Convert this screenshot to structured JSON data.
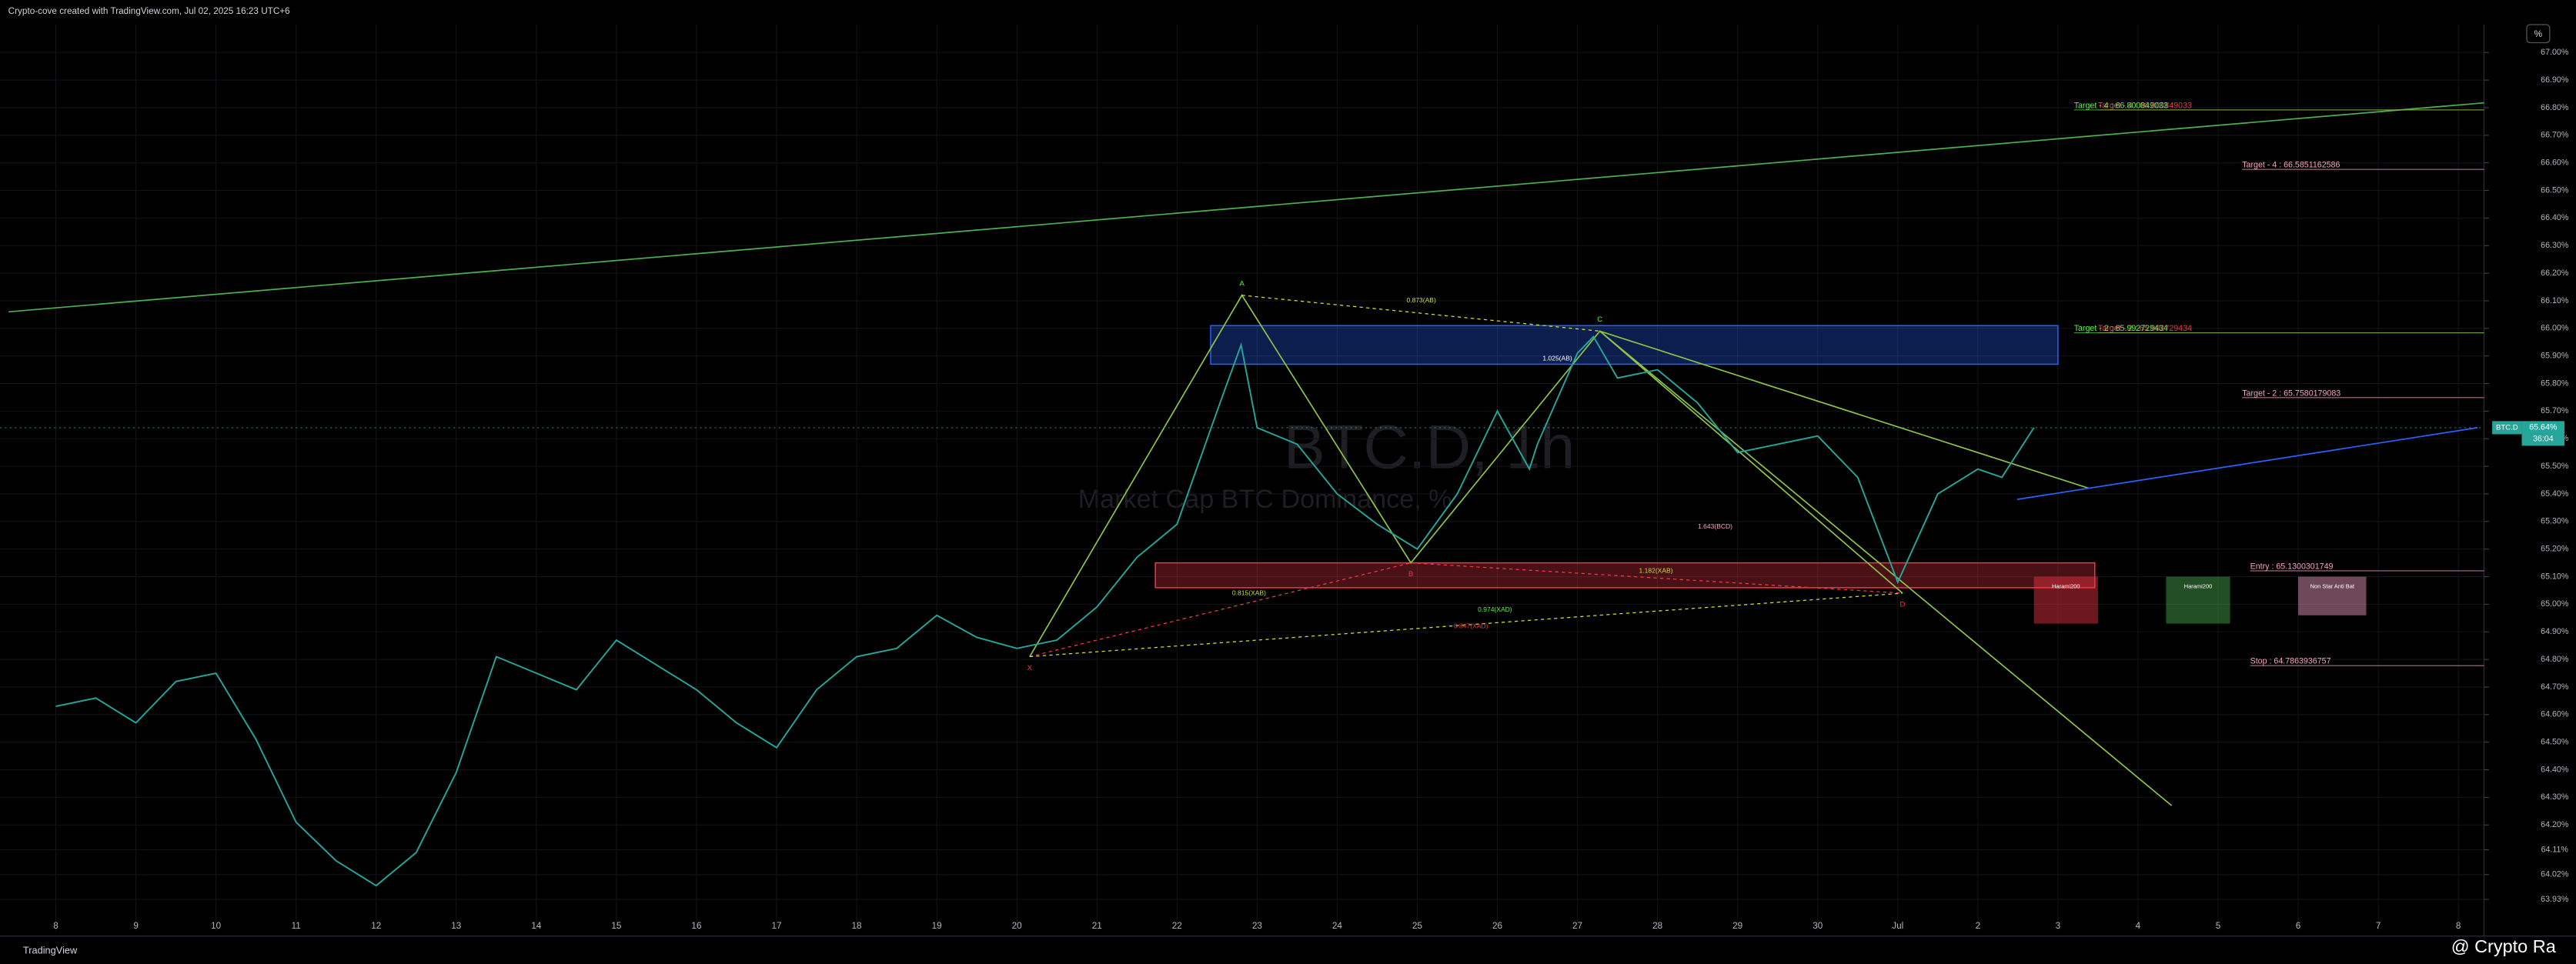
{
  "header": {
    "text": "Crypto-cove created with TradingView.com, Jul 02, 2025 16:23 UTC+6",
    "percent_button": "%"
  },
  "footer": {
    "logo": "TradingView",
    "watermark": "@ Crypto Ra"
  },
  "chart_data": {
    "type": "line",
    "symbol": "BTC.D, 1h",
    "subtitle": "Market Cap BTC Dominance, %",
    "x": [
      0,
      0.5,
      1,
      1.5,
      2,
      2.5,
      3,
      3.5,
      4,
      4.5,
      5,
      5.5,
      6,
      6.5,
      7,
      7.5,
      8,
      8.5,
      9,
      9.5,
      10,
      10.5,
      11,
      11.5,
      12,
      12.5,
      13,
      13.5,
      14,
      14.5,
      14.8,
      15,
      15.5,
      16,
      16.5,
      17,
      17.5,
      18,
      18.4,
      18.5,
      19,
      19.2,
      19.5,
      20,
      20.5,
      21,
      21.5,
      22,
      22.5,
      23,
      23.5,
      24,
      24.3,
      24.7
    ],
    "series": [
      {
        "name": "BTC.D",
        "color": "#26a69a",
        "values": [
          64.63,
          64.66,
          64.57,
          64.72,
          64.75,
          64.51,
          64.21,
          64.07,
          63.98,
          64.1,
          64.39,
          64.81,
          64.75,
          64.69,
          64.87,
          64.78,
          64.69,
          64.57,
          64.48,
          64.69,
          64.81,
          64.84,
          64.96,
          64.88,
          64.84,
          64.87,
          64.99,
          65.17,
          65.29,
          65.7,
          65.94,
          65.64,
          65.58,
          65.4,
          65.29,
          65.2,
          65.4,
          65.7,
          65.49,
          65.58,
          65.91,
          65.97,
          65.82,
          65.85,
          65.73,
          65.55,
          65.58,
          65.61,
          65.46,
          65.08,
          65.4,
          65.49,
          65.46,
          65.64
        ]
      }
    ],
    "current": {
      "symbol": "BTC.D",
      "value": 65.64,
      "label": "65.64%",
      "countdown": "36:04"
    },
    "xlim": [
      -0.697,
      30.32
    ],
    "ylim": [
      63.815,
      67.101
    ],
    "xticks": [
      {
        "value": 0,
        "label": "8"
      },
      {
        "value": 1,
        "label": "9"
      },
      {
        "value": 2,
        "label": "10"
      },
      {
        "value": 3,
        "label": "11"
      },
      {
        "value": 4,
        "label": "12"
      },
      {
        "value": 5,
        "label": "13"
      },
      {
        "value": 6,
        "label": "14"
      },
      {
        "value": 7,
        "label": "15"
      },
      {
        "value": 8,
        "label": "16"
      },
      {
        "value": 9,
        "label": "17"
      },
      {
        "value": 10,
        "label": "18"
      },
      {
        "value": 11,
        "label": "19"
      },
      {
        "value": 12,
        "label": "20"
      },
      {
        "value": 13,
        "label": "21"
      },
      {
        "value": 14,
        "label": "22"
      },
      {
        "value": 15,
        "label": "23"
      },
      {
        "value": 16,
        "label": "24"
      },
      {
        "value": 17,
        "label": "25"
      },
      {
        "value": 18,
        "label": "26"
      },
      {
        "value": 19,
        "label": "27"
      },
      {
        "value": 20,
        "label": "28"
      },
      {
        "value": 21,
        "label": "29"
      },
      {
        "value": 22,
        "label": "30"
      },
      {
        "value": 23,
        "label": "Jul"
      },
      {
        "value": 24,
        "label": "2"
      },
      {
        "value": 25,
        "label": "3"
      },
      {
        "value": 26,
        "label": "4"
      },
      {
        "value": 27,
        "label": "5"
      },
      {
        "value": 28,
        "label": "6"
      },
      {
        "value": 29,
        "label": "7"
      },
      {
        "value": 30,
        "label": "8"
      }
    ],
    "yticks": [
      {
        "value": 67,
        "label": "67.00%"
      },
      {
        "value": 66.9,
        "label": "66.90%"
      },
      {
        "value": 66.8,
        "label": "66.80%"
      },
      {
        "value": 66.7,
        "label": "66.70%"
      },
      {
        "value": 66.6,
        "label": "66.60%"
      },
      {
        "value": 66.5,
        "label": "66.50%"
      },
      {
        "value": 66.4,
        "label": "66.40%"
      },
      {
        "value": 66.3,
        "label": "66.30%"
      },
      {
        "value": 66.2,
        "label": "66.20%"
      },
      {
        "value": 66.1,
        "label": "66.10%"
      },
      {
        "value": 66,
        "label": "66.00%"
      },
      {
        "value": 65.9,
        "label": "65.90%"
      },
      {
        "value": 65.8,
        "label": "65.80%"
      },
      {
        "value": 65.7,
        "label": "65.70%"
      },
      {
        "value": 65.6,
        "label": "65.60%"
      },
      {
        "value": 65.5,
        "label": "65.50%"
      },
      {
        "value": 65.4,
        "label": "65.40%"
      },
      {
        "value": 65.3,
        "label": "65.30%"
      },
      {
        "value": 65.2,
        "label": "65.20%"
      },
      {
        "value": 65.1,
        "label": "65.10%"
      },
      {
        "value": 65,
        "label": "65.00%"
      },
      {
        "value": 64.9,
        "label": "64.90%"
      },
      {
        "value": 64.8,
        "label": "64.80%"
      },
      {
        "value": 64.7,
        "label": "64.70%"
      },
      {
        "value": 64.6,
        "label": "64.60%"
      },
      {
        "value": 64.5,
        "label": "64.50%"
      },
      {
        "value": 64.4,
        "label": "64.40%"
      },
      {
        "value": 64.3,
        "label": "64.30%"
      },
      {
        "value": 64.2,
        "label": "64.20%"
      },
      {
        "value": 64.11,
        "label": "64.11%"
      },
      {
        "value": 64.02,
        "label": "64.02%"
      },
      {
        "value": 63.93,
        "label": "63.93%"
      }
    ],
    "grid": true,
    "levels": [
      {
        "label": "Target - 4 : 66.800849033",
        "value": 66.800849033,
        "color": "#f23645",
        "x": 25.5
      },
      {
        "label": "Target - 4 : 66.800849033",
        "value": 66.800849033,
        "color": "#5df04a",
        "x": 25.2
      },
      {
        "label": "Target - 4 : 66.5851162586",
        "value": 66.5851162586,
        "color": "#f7a1c4",
        "x": 27.3
      },
      {
        "label": "Target - 2 : 65.992729434",
        "value": 65.992729434,
        "color": "#f23645",
        "x": 25.5
      },
      {
        "label": "Target - 2 : 65.992729434",
        "value": 65.992729434,
        "color": "#5df04a",
        "x": 25.2
      },
      {
        "label": "Target - 2 : 65.7580179083",
        "value": 65.7580179083,
        "color": "#f7a1c4",
        "x": 27.3
      },
      {
        "label": "Entry : 65.1300301749",
        "value": 65.1300301749,
        "color": "#f7a1c4",
        "x": 27.4
      },
      {
        "label": "Stop : 64.7863936757",
        "value": 64.7863936757,
        "color": "#f7a1c4",
        "x": 27.4
      }
    ],
    "zones": [
      {
        "x0": 14.42,
        "x1": 25.0,
        "top": 66.01,
        "bottom": 65.87,
        "color": "#2962ff"
      },
      {
        "x0": 13.73,
        "x1": 25.46,
        "top": 65.15,
        "bottom": 65.06,
        "color": "#f23645"
      }
    ],
    "trendlines": [
      {
        "x0": -0.59,
        "y0": 66.06,
        "x1": 30.83,
        "y1": 66.83,
        "color": "#4caf50"
      },
      {
        "x0": 19.28,
        "y0": 65.99,
        "x1": 26.42,
        "y1": 64.27,
        "color": "#8bc34a"
      },
      {
        "x0": 19.28,
        "y0": 65.99,
        "x1": 25.39,
        "y1": 65.42,
        "color": "#8bc34a"
      },
      {
        "x0": 24.49,
        "y0": 65.38,
        "x1": 30.24,
        "y1": 65.64,
        "color": "#2962ff"
      }
    ],
    "pattern": {
      "color": "#8bc34a",
      "points": [
        {
          "label": "X",
          "x": 12.16,
          "y": 64.81
        },
        {
          "label": "A",
          "x": 14.81,
          "y": 66.12
        },
        {
          "label": "B",
          "x": 16.92,
          "y": 65.15
        },
        {
          "label": "C",
          "x": 19.28,
          "y": 65.99
        },
        {
          "label": "D",
          "x": 23.06,
          "y": 65.04
        }
      ]
    },
    "annotations": [
      {
        "text": "0.873(AB)",
        "x": 17.05,
        "y": 66.1,
        "color": "#cddc39"
      },
      {
        "text": "1.025(AB)",
        "x": 18.75,
        "y": 65.89,
        "color": "#ffffff"
      },
      {
        "text": "1.643(BCD)",
        "x": 20.72,
        "y": 65.28,
        "color": "#f7a1c4"
      },
      {
        "text": "1.182(XAB)",
        "x": 19.98,
        "y": 65.12,
        "color": "#cddc39"
      },
      {
        "text": "0.974(XAD)",
        "x": 17.97,
        "y": 64.98,
        "color": "#5df04a"
      },
      {
        "text": "0.815(XAB)",
        "x": 14.9,
        "y": 65.04,
        "color": "#cddc39"
      },
      {
        "text": "0.847(XAD)",
        "x": 17.67,
        "y": 64.92,
        "color": "#f23645"
      }
    ],
    "boxes": [
      {
        "label": "Harami200",
        "x0": 24.7,
        "x1": 25.5,
        "top": 65.1,
        "bottom": 64.93,
        "color": "#f23645"
      },
      {
        "label": "Harami200",
        "x0": 26.35,
        "x1": 27.15,
        "top": 65.1,
        "bottom": 64.93,
        "color": "#4caf50"
      },
      {
        "label": "Non Star Anti Bat",
        "x0": 28.0,
        "x1": 28.85,
        "top": 65.1,
        "bottom": 64.96,
        "color": "#f7a1c4"
      }
    ]
  }
}
